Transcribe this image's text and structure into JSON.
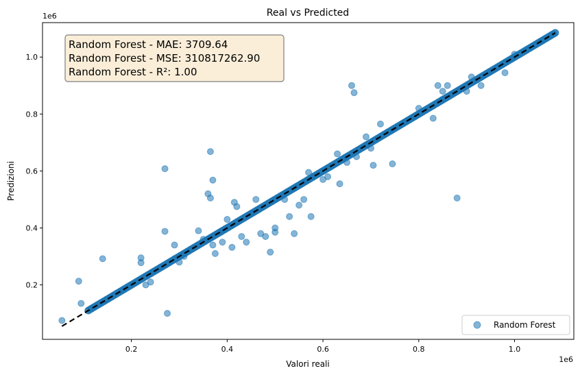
{
  "chart_data": {
    "type": "scatter",
    "title": "Real vs Predicted",
    "xlabel": "Valori reali",
    "ylabel": "Predizioni",
    "x_offset_label": "1e6",
    "y_offset_label": "1e6",
    "xlim": [
      0.0144,
      1.1238
    ],
    "ylim": [
      0.0088,
      1.1209
    ],
    "x_ticks": [
      {
        "value": 0.2,
        "label": "0.2"
      },
      {
        "value": 0.4,
        "label": "0.4"
      },
      {
        "value": 0.6,
        "label": "0.6"
      },
      {
        "value": 0.8,
        "label": "0.8"
      },
      {
        "value": 1.0,
        "label": "1.0"
      }
    ],
    "y_ticks": [
      {
        "value": 0.2,
        "label": "0.2"
      },
      {
        "value": 0.4,
        "label": "0.4"
      },
      {
        "value": 0.6,
        "label": "0.6"
      },
      {
        "value": 0.8,
        "label": "0.8"
      },
      {
        "value": 1.0,
        "label": "1.0"
      }
    ],
    "grid": false,
    "legend_position": "bottom-right",
    "metrics_text": [
      "Random Forest - MAE: 3709.64",
      "Random Forest - MSE: 310817262.90",
      "Random Forest - R²: 1.00"
    ],
    "reference_line": {
      "x": [
        0.055,
        1.085
      ],
      "y": [
        0.055,
        1.085
      ],
      "style": "dashed",
      "color": "#000000"
    },
    "series": [
      {
        "name": "Random Forest",
        "color": "#1f77b4",
        "alpha": 0.55,
        "points": [
          [
            0.055,
            0.075
          ],
          [
            0.09,
            0.213
          ],
          [
            0.095,
            0.135
          ],
          [
            0.14,
            0.292
          ],
          [
            0.22,
            0.295
          ],
          [
            0.22,
            0.278
          ],
          [
            0.23,
            0.2
          ],
          [
            0.24,
            0.21
          ],
          [
            0.27,
            0.608
          ],
          [
            0.27,
            0.388
          ],
          [
            0.275,
            0.1
          ],
          [
            0.29,
            0.34
          ],
          [
            0.3,
            0.28
          ],
          [
            0.31,
            0.3
          ],
          [
            0.34,
            0.39
          ],
          [
            0.35,
            0.36
          ],
          [
            0.36,
            0.52
          ],
          [
            0.365,
            0.668
          ],
          [
            0.365,
            0.505
          ],
          [
            0.37,
            0.568
          ],
          [
            0.37,
            0.34
          ],
          [
            0.375,
            0.31
          ],
          [
            0.39,
            0.35
          ],
          [
            0.4,
            0.43
          ],
          [
            0.41,
            0.332
          ],
          [
            0.415,
            0.49
          ],
          [
            0.42,
            0.475
          ],
          [
            0.43,
            0.37
          ],
          [
            0.44,
            0.35
          ],
          [
            0.45,
            0.45
          ],
          [
            0.46,
            0.5
          ],
          [
            0.47,
            0.38
          ],
          [
            0.48,
            0.37
          ],
          [
            0.49,
            0.315
          ],
          [
            0.5,
            0.4
          ],
          [
            0.5,
            0.385
          ],
          [
            0.52,
            0.5
          ],
          [
            0.53,
            0.44
          ],
          [
            0.54,
            0.38
          ],
          [
            0.55,
            0.48
          ],
          [
            0.56,
            0.5
          ],
          [
            0.57,
            0.595
          ],
          [
            0.575,
            0.44
          ],
          [
            0.6,
            0.57
          ],
          [
            0.61,
            0.58
          ],
          [
            0.63,
            0.66
          ],
          [
            0.635,
            0.555
          ],
          [
            0.65,
            0.63
          ],
          [
            0.66,
            0.9
          ],
          [
            0.665,
            0.875
          ],
          [
            0.67,
            0.65
          ],
          [
            0.69,
            0.72
          ],
          [
            0.7,
            0.68
          ],
          [
            0.705,
            0.62
          ],
          [
            0.72,
            0.765
          ],
          [
            0.745,
            0.625
          ],
          [
            0.8,
            0.82
          ],
          [
            0.83,
            0.785
          ],
          [
            0.84,
            0.9
          ],
          [
            0.85,
            0.88
          ],
          [
            0.86,
            0.9
          ],
          [
            0.88,
            0.505
          ],
          [
            0.9,
            0.88
          ],
          [
            0.91,
            0.93
          ],
          [
            0.93,
            0.9
          ],
          [
            0.98,
            0.945
          ],
          [
            1.0,
            1.01
          ]
        ],
        "dense_band": {
          "x_start": 0.11,
          "x_end": 1.085
        }
      }
    ]
  }
}
